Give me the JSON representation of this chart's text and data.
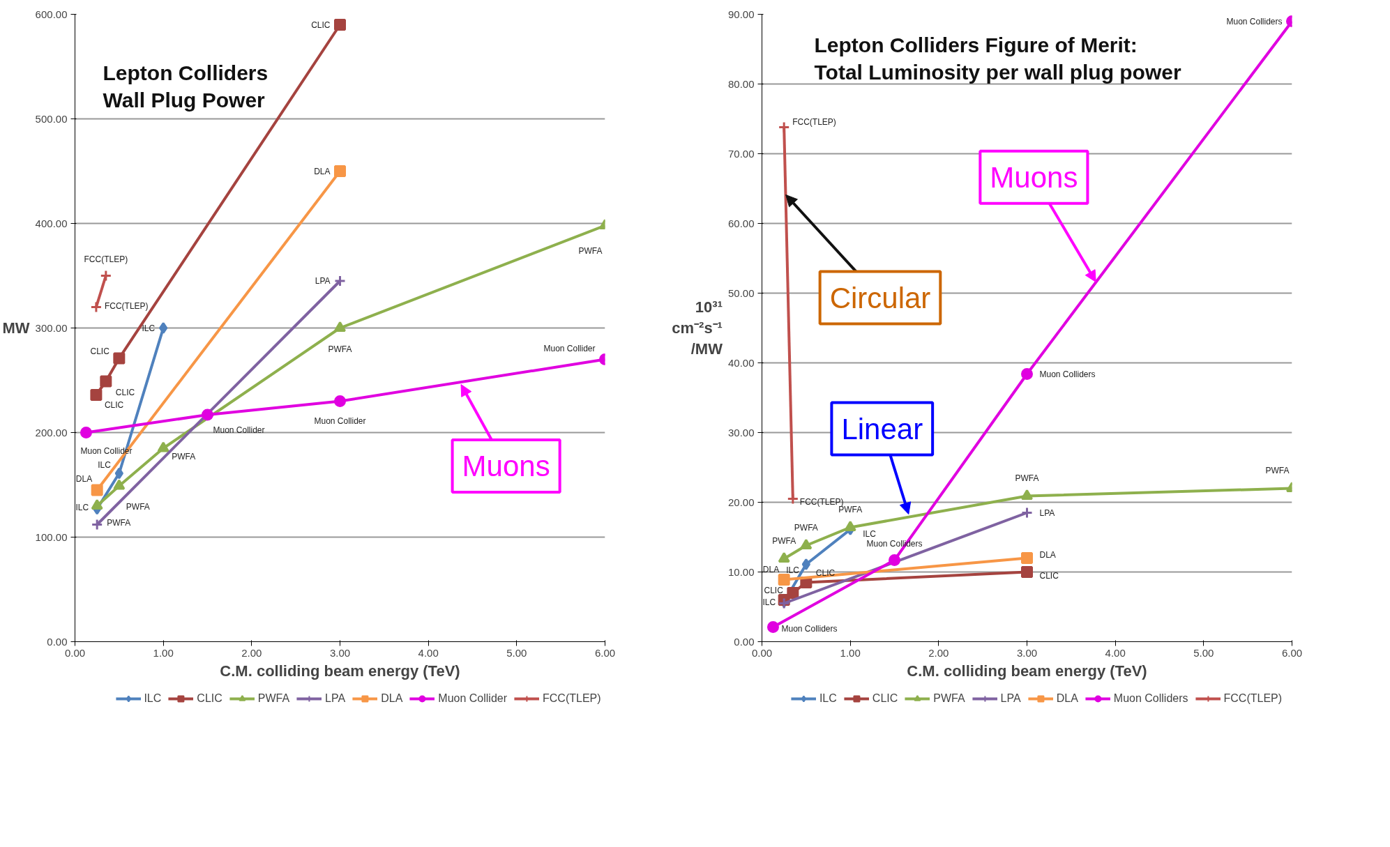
{
  "chart_data": [
    {
      "type": "line",
      "title": "Lepton Colliders\nWall Plug Power",
      "xlabel": "C.M. colliding beam energy (TeV)",
      "ylabel": "MW",
      "xlim": [
        0,
        6
      ],
      "ylim": [
        0,
        600
      ],
      "xticks": [
        {
          "value": 0,
          "label": "0.00"
        },
        {
          "value": 1,
          "label": "1.00"
        },
        {
          "value": 2,
          "label": "2.00"
        },
        {
          "value": 3,
          "label": "3.00"
        },
        {
          "value": 4,
          "label": "4.00"
        },
        {
          "value": 5,
          "label": "5.00"
        },
        {
          "value": 6,
          "label": "6.00"
        }
      ],
      "yticks": [
        {
          "value": 0,
          "label": "0.00"
        },
        {
          "value": 100,
          "label": "100.00"
        },
        {
          "value": 200,
          "label": "200.00"
        },
        {
          "value": 300,
          "label": "300.00"
        },
        {
          "value": 400,
          "label": "400.00"
        },
        {
          "value": 500,
          "label": "500.00"
        },
        {
          "value": 600,
          "label": "600.00"
        }
      ],
      "grid": "y",
      "legend": "bottom",
      "series": [
        {
          "name": "ILC",
          "color": "#4f81bd",
          "marker": "diamond",
          "x": [
            0.25,
            0.5,
            1.0
          ],
          "values": [
            127,
            161,
            300
          ],
          "value_labels": [
            "ILC",
            "ILC",
            "ILC"
          ]
        },
        {
          "name": "CLIC",
          "color": "#a5433f",
          "marker": "square",
          "x": [
            0.24,
            0.35,
            0.5,
            3.0
          ],
          "values": [
            236,
            249,
            271,
            590
          ],
          "value_labels": [
            "CLIC",
            "CLIC",
            "CLIC",
            "CLIC"
          ]
        },
        {
          "name": "PWFA",
          "color": "#8eb04d",
          "marker": "triangle",
          "x": [
            0.25,
            0.5,
            1.0,
            3.0,
            6.0
          ],
          "values": [
            130,
            149,
            185,
            300,
            398
          ],
          "value_labels": [
            "PWFA",
            "PWFA",
            "PWFA",
            "PWFA",
            "PWFA"
          ]
        },
        {
          "name": "LPA",
          "color": "#7f62a1",
          "marker": "cross",
          "x": [
            0.25,
            3.0
          ],
          "values": [
            112,
            345
          ],
          "value_labels": [
            null,
            "LPA"
          ]
        },
        {
          "name": "DLA",
          "color": "#f79646",
          "marker": "square",
          "x": [
            0.25,
            3.0
          ],
          "values": [
            145,
            450
          ],
          "value_labels": [
            "DLA",
            "DLA"
          ]
        },
        {
          "name": "Muon Collider",
          "color": "#e000e0",
          "marker": "circle",
          "x": [
            0.126,
            1.5,
            3.0,
            6.0
          ],
          "values": [
            200,
            217,
            230,
            270
          ],
          "value_labels": [
            "Muon Collider",
            "Muon Collider",
            "Muon Collider",
            "Muon Collider"
          ]
        },
        {
          "name": "FCC(TLEP)",
          "color": "#c0504d",
          "marker": "cross",
          "x": [
            0.24,
            0.35
          ],
          "values": [
            320,
            350
          ],
          "value_labels": [
            "FCC(TLEP)",
            "FCC(TLEP)"
          ]
        }
      ],
      "annotations": [
        {
          "text": "Muons",
          "x": 4.37,
          "y": 246
        }
      ]
    },
    {
      "type": "line",
      "title": "Lepton Colliders Figure of Merit:\nTotal Luminosity per wall plug power",
      "xlabel": "C.M. colliding beam energy (TeV)",
      "ylabel": "10³¹ cm⁻²s⁻¹ /MW",
      "xlim": [
        0,
        6
      ],
      "ylim": [
        0,
        90
      ],
      "xticks": [
        {
          "value": 0,
          "label": "0.00"
        },
        {
          "value": 1,
          "label": "1.00"
        },
        {
          "value": 2,
          "label": "2.00"
        },
        {
          "value": 3,
          "label": "3.00"
        },
        {
          "value": 4,
          "label": "4.00"
        },
        {
          "value": 5,
          "label": "5.00"
        },
        {
          "value": 6,
          "label": "6.00"
        }
      ],
      "yticks": [
        {
          "value": 0,
          "label": "0.00"
        },
        {
          "value": 10,
          "label": "10.00"
        },
        {
          "value": 20,
          "label": "20.00"
        },
        {
          "value": 30,
          "label": "30.00"
        },
        {
          "value": 40,
          "label": "40.00"
        },
        {
          "value": 50,
          "label": "50.00"
        },
        {
          "value": 60,
          "label": "60.00"
        },
        {
          "value": 70,
          "label": "70.00"
        },
        {
          "value": 80,
          "label": "80.00"
        },
        {
          "value": 90,
          "label": "90.00"
        }
      ],
      "grid": "y",
      "legend": "bottom",
      "series": [
        {
          "name": "ILC",
          "color": "#4f81bd",
          "marker": "diamond",
          "x": [
            0.25,
            0.5,
            1.0
          ],
          "values": [
            5.7,
            11.1,
            16.1
          ],
          "value_labels": [
            "ILC",
            "ILC",
            "ILC"
          ]
        },
        {
          "name": "CLIC",
          "color": "#a5433f",
          "marker": "square",
          "x": [
            0.25,
            0.35,
            0.5,
            3.0
          ],
          "values": [
            6.0,
            7.0,
            8.5,
            10.0
          ],
          "value_labels": [
            null,
            "CLIC",
            "CLIC",
            "CLIC"
          ]
        },
        {
          "name": "PWFA",
          "color": "#8eb04d",
          "marker": "triangle",
          "x": [
            0.25,
            0.5,
            1.0,
            3.0,
            6.0
          ],
          "values": [
            11.9,
            13.8,
            16.4,
            20.9,
            22.0
          ],
          "value_labels": [
            "PWFA",
            "PWFA",
            "PWFA",
            "PWFA",
            "PWFA"
          ]
        },
        {
          "name": "LPA",
          "color": "#7f62a1",
          "marker": "cross",
          "x": [
            0.25,
            3.0
          ],
          "values": [
            5.5,
            18.5
          ],
          "value_labels": [
            null,
            "LPA"
          ]
        },
        {
          "name": "DLA",
          "color": "#f79646",
          "marker": "square",
          "x": [
            0.25,
            3.0
          ],
          "values": [
            8.9,
            12.0
          ],
          "value_labels": [
            "DLA",
            "DLA"
          ]
        },
        {
          "name": "Muon Colliders",
          "color": "#e000e0",
          "marker": "circle",
          "x": [
            0.126,
            1.5,
            3.0,
            6.0
          ],
          "values": [
            2.1,
            11.7,
            38.4,
            89.0
          ],
          "value_labels": [
            "Muon Colliders",
            "Muon Colliders",
            "Muon Colliders",
            "Muon Colliders"
          ]
        },
        {
          "name": "FCC(TLEP)",
          "color": "#c0504d",
          "marker": "cross",
          "x": [
            0.25,
            0.35
          ],
          "values": [
            73.8,
            20.5
          ],
          "value_labels": [
            "FCC(TLEP)",
            "FCC(TLEP)"
          ]
        }
      ],
      "annotations": [
        {
          "text": "Muons",
          "x": 3.78,
          "y": 51.6
        },
        {
          "text": "Circular",
          "x": 0.27,
          "y": 64.1
        },
        {
          "text": "Linear",
          "x": 1.66,
          "y": 18.3
        }
      ]
    }
  ]
}
